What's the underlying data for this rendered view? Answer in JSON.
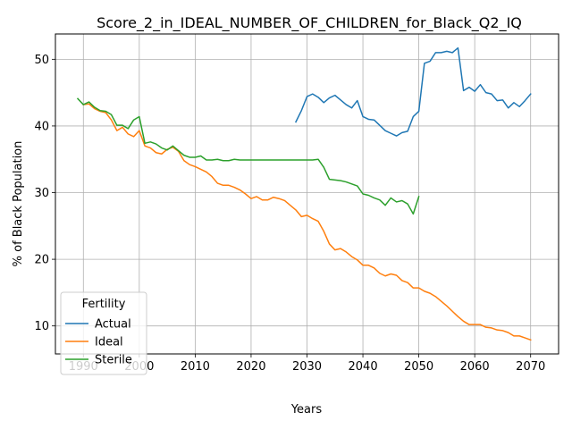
{
  "chart_data": {
    "type": "line",
    "title": "Score_2_in_IDEAL_NUMBER_OF_CHILDREN_for_Black_Q2_IQ",
    "xlabel": "Years",
    "ylabel": "% of Black Population",
    "xlim": [
      1985,
      2075
    ],
    "ylim": [
      5.8,
      53.8
    ],
    "xticks": [
      1990,
      2000,
      2010,
      2020,
      2030,
      2040,
      2050,
      2060,
      2070
    ],
    "yticks": [
      10,
      20,
      30,
      40,
      50
    ],
    "grid": true,
    "legend": {
      "title": "Fertility",
      "position": "lower-left"
    },
    "series": [
      {
        "name": "Actual",
        "color": "#1f77b4",
        "x": [
          2028,
          2029,
          2030,
          2031,
          2032,
          2033,
          2034,
          2035,
          2036,
          2037,
          2038,
          2039,
          2040,
          2041,
          2042,
          2043,
          2044,
          2045,
          2046,
          2047,
          2048,
          2049,
          2050,
          2051,
          2052,
          2053,
          2054,
          2055,
          2056,
          2057,
          2058,
          2059,
          2060,
          2061,
          2062,
          2063,
          2064,
          2065,
          2066,
          2067,
          2068,
          2069,
          2070
        ],
        "values": [
          40.6,
          42.3,
          44.4,
          44.8,
          44.3,
          43.5,
          44.2,
          44.6,
          43.9,
          43.2,
          42.7,
          43.8,
          41.4,
          41.0,
          40.9,
          40.1,
          39.3,
          38.9,
          38.5,
          39.0,
          39.2,
          41.4,
          42.2,
          49.4,
          49.7,
          51.0,
          51.0,
          51.2,
          51.0,
          51.7,
          45.3,
          45.8,
          45.2,
          46.2,
          45.0,
          44.8,
          43.8,
          43.9,
          42.7,
          43.5,
          42.9,
          43.8,
          44.8
        ]
      },
      {
        "name": "Ideal",
        "color": "#ff7f0e",
        "x": [
          1990,
          1991,
          1992,
          1993,
          1994,
          1995,
          1996,
          1997,
          1998,
          1999,
          2000,
          2001,
          2002,
          2003,
          2004,
          2005,
          2006,
          2007,
          2008,
          2009,
          2010,
          2011,
          2012,
          2013,
          2014,
          2015,
          2016,
          2017,
          2018,
          2019,
          2020,
          2021,
          2022,
          2023,
          2024,
          2025,
          2026,
          2027,
          2028,
          2029,
          2030,
          2031,
          2032,
          2033,
          2034,
          2035,
          2036,
          2037,
          2038,
          2039,
          2040,
          2041,
          2042,
          2043,
          2044,
          2045,
          2046,
          2047,
          2048,
          2049,
          2050,
          2051,
          2052,
          2053,
          2054,
          2055,
          2056,
          2057,
          2058,
          2059,
          2060,
          2061,
          2062,
          2063,
          2064,
          2065,
          2066,
          2067,
          2068,
          2069,
          2070
        ],
        "values": [
          43.2,
          43.3,
          42.6,
          42.2,
          42.0,
          40.9,
          39.3,
          39.8,
          38.8,
          38.4,
          39.3,
          37.0,
          36.7,
          36.0,
          35.8,
          36.5,
          36.8,
          36.2,
          34.8,
          34.2,
          33.9,
          33.5,
          33.1,
          32.4,
          31.4,
          31.1,
          31.1,
          30.8,
          30.4,
          29.8,
          29.1,
          29.4,
          28.9,
          28.9,
          29.3,
          29.1,
          28.8,
          28.1,
          27.4,
          26.4,
          26.6,
          26.1,
          25.7,
          24.2,
          22.3,
          21.4,
          21.6,
          21.1,
          20.4,
          19.9,
          19.1,
          19.1,
          18.7,
          17.9,
          17.5,
          17.8,
          17.6,
          16.8,
          16.5,
          15.7,
          15.7,
          15.2,
          14.9,
          14.4,
          13.7,
          13.0,
          12.2,
          11.4,
          10.7,
          10.2,
          10.2,
          10.2,
          9.8,
          9.7,
          9.4,
          9.3,
          9.0,
          8.5,
          8.5,
          8.2,
          7.9
        ]
      },
      {
        "name": "Sterile",
        "color": "#2ca02c",
        "x": [
          1989,
          1990,
          1991,
          1992,
          1993,
          1994,
          1995,
          1996,
          1997,
          1998,
          1999,
          2000,
          2001,
          2002,
          2003,
          2004,
          2005,
          2006,
          2007,
          2008,
          2009,
          2010,
          2011,
          2012,
          2013,
          2014,
          2015,
          2016,
          2017,
          2018,
          2019,
          2020,
          2021,
          2022,
          2023,
          2024,
          2025,
          2026,
          2027,
          2028,
          2029,
          2030,
          2031,
          2032,
          2033,
          2034,
          2035,
          2036,
          2037,
          2038,
          2039,
          2040,
          2041,
          2042,
          2043,
          2044,
          2045,
          2046,
          2047,
          2048,
          2049,
          2050
        ],
        "values": [
          44.1,
          43.2,
          43.6,
          42.8,
          42.3,
          42.2,
          41.7,
          40.1,
          40.1,
          39.6,
          40.9,
          41.4,
          37.4,
          37.6,
          37.3,
          36.7,
          36.4,
          37.0,
          36.3,
          35.6,
          35.3,
          35.3,
          35.5,
          34.9,
          34.9,
          35.0,
          34.8,
          34.8,
          35.0,
          34.9,
          34.9,
          34.9,
          34.9,
          34.9,
          34.9,
          34.9,
          34.9,
          34.9,
          34.9,
          34.9,
          34.9,
          34.9,
          34.9,
          35.0,
          33.8,
          32.0,
          31.9,
          31.8,
          31.6,
          31.3,
          31.0,
          29.8,
          29.6,
          29.2,
          28.9,
          28.1,
          29.2,
          28.6,
          28.8,
          28.3,
          26.8,
          29.4
        ]
      }
    ]
  }
}
